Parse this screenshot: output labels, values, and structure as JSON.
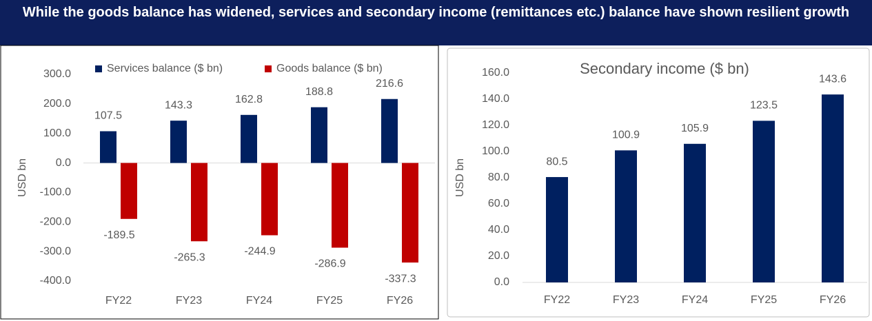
{
  "header": {
    "title": "While the goods balance has widened, services and secondary income (remittances etc.) balance have shown resilient growth"
  },
  "chart_data": [
    {
      "type": "bar",
      "y_label": "USD bn",
      "categories": [
        "FY22",
        "FY23",
        "FY24",
        "FY25",
        "FY26"
      ],
      "series": [
        {
          "name": "Services balance ($ bn)",
          "color": "#002060",
          "values": [
            107.5,
            143.3,
            162.8,
            188.8,
            216.6
          ]
        },
        {
          "name": "Goods balance ($ bn)",
          "color": "#c00000",
          "values": [
            -189.5,
            -265.3,
            -244.9,
            -286.9,
            -337.3
          ]
        }
      ],
      "ylim": [
        -400,
        300
      ],
      "yticks": [
        {
          "value": -400,
          "label": "-400.0"
        },
        {
          "value": -300,
          "label": "-300.0"
        },
        {
          "value": -200,
          "label": "-200.0"
        },
        {
          "value": -100,
          "label": "-100.0"
        },
        {
          "value": 0,
          "label": "0.0"
        },
        {
          "value": 100,
          "label": "100.0"
        },
        {
          "value": 200,
          "label": "200.0"
        },
        {
          "value": 300,
          "label": "300.0"
        }
      ],
      "legend": "top"
    },
    {
      "type": "bar",
      "title": "Secondary income ($ bn)",
      "y_label": "USD bn",
      "categories": [
        "FY22",
        "FY23",
        "FY24",
        "FY25",
        "FY26"
      ],
      "series": [
        {
          "name": "Secondary income ($ bn)",
          "color": "#002060",
          "values": [
            80.5,
            100.9,
            105.9,
            123.5,
            143.6
          ]
        }
      ],
      "ylim": [
        0,
        160
      ],
      "yticks": [
        {
          "value": 0,
          "label": "0.0"
        },
        {
          "value": 20,
          "label": "20.0"
        },
        {
          "value": 40,
          "label": "40.0"
        },
        {
          "value": 60,
          "label": "60.0"
        },
        {
          "value": 80,
          "label": "80.0"
        },
        {
          "value": 100,
          "label": "100.0"
        },
        {
          "value": 120,
          "label": "120.0"
        },
        {
          "value": 140,
          "label": "140.0"
        },
        {
          "value": 160,
          "label": "160.0"
        }
      ]
    }
  ]
}
